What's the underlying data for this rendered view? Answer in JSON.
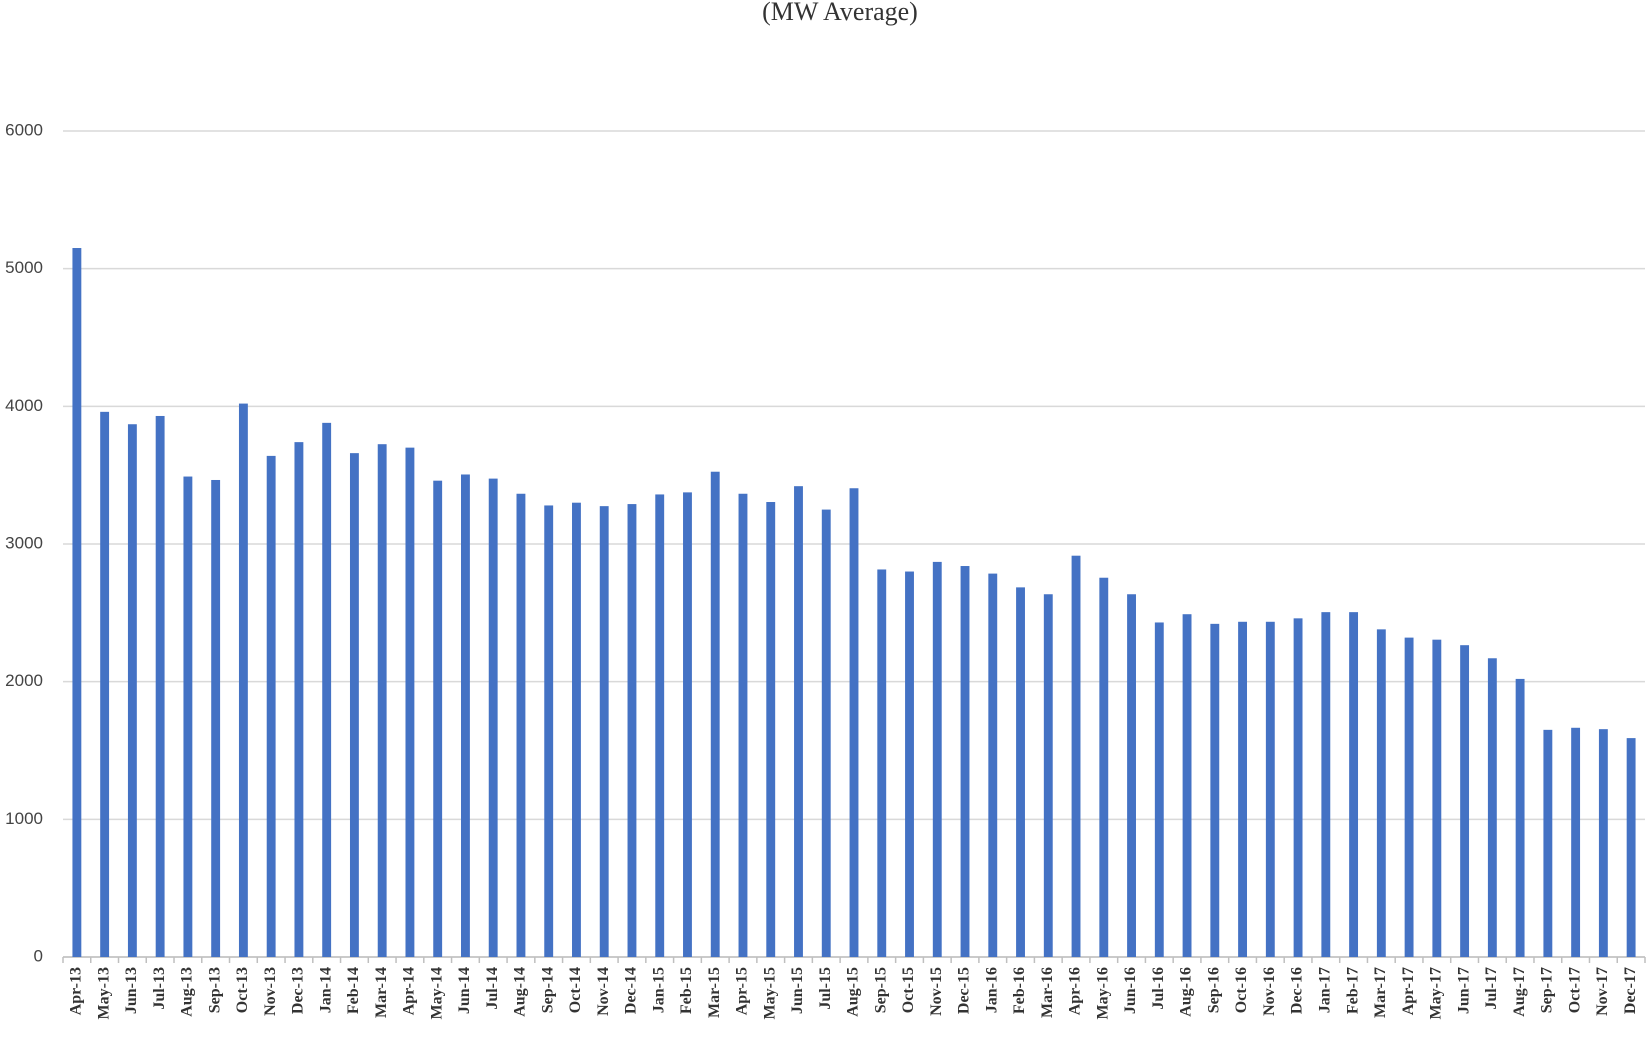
{
  "chart_data": {
    "type": "bar",
    "title": "(MW Average)",
    "categories": [
      "Apr-13",
      "May-13",
      "Jun-13",
      "Jul-13",
      "Aug-13",
      "Sep-13",
      "Oct-13",
      "Nov-13",
      "Dec-13",
      "Jan-14",
      "Feb-14",
      "Mar-14",
      "Apr-14",
      "May-14",
      "Jun-14",
      "Jul-14",
      "Aug-14",
      "Sep-14",
      "Oct-14",
      "Nov-14",
      "Dec-14",
      "Jan-15",
      "Feb-15",
      "Mar-15",
      "Apr-15",
      "May-15",
      "Jun-15",
      "Jul-15",
      "Aug-15",
      "Sep-15",
      "Oct-15",
      "Nov-15",
      "Dec-15",
      "Jan-16",
      "Feb-16",
      "Mar-16",
      "Apr-16",
      "May-16",
      "Jun-16",
      "Jul-16",
      "Aug-16",
      "Sep-16",
      "Oct-16",
      "Nov-16",
      "Dec-16",
      "Jan-17",
      "Feb-17",
      "Mar-17",
      "Apr-17",
      "May-17",
      "Jun-17",
      "Jul-17",
      "Aug-17",
      "Sep-17",
      "Oct-17",
      "Nov-17",
      "Dec-17"
    ],
    "values": [
      5150,
      3960,
      3870,
      3930,
      3490,
      3465,
      4020,
      3640,
      3740,
      3880,
      3660,
      3725,
      3700,
      3460,
      3505,
      3475,
      3365,
      3280,
      3300,
      3275,
      3290,
      3360,
      3375,
      3525,
      3365,
      3305,
      3420,
      3250,
      3405,
      2815,
      2800,
      2870,
      2840,
      2785,
      2685,
      2635,
      2915,
      2755,
      2635,
      2430,
      2490,
      2420,
      2435,
      2435,
      2460,
      2505,
      2505,
      2380,
      2320,
      2305,
      2265,
      2170,
      2020,
      1650,
      1665,
      1655,
      1590
    ],
    "color": "#4472c4",
    "ylim": [
      0,
      6000
    ],
    "yticks": [
      0,
      1000,
      2000,
      3000,
      4000,
      5000,
      6000
    ],
    "grid": true
  }
}
